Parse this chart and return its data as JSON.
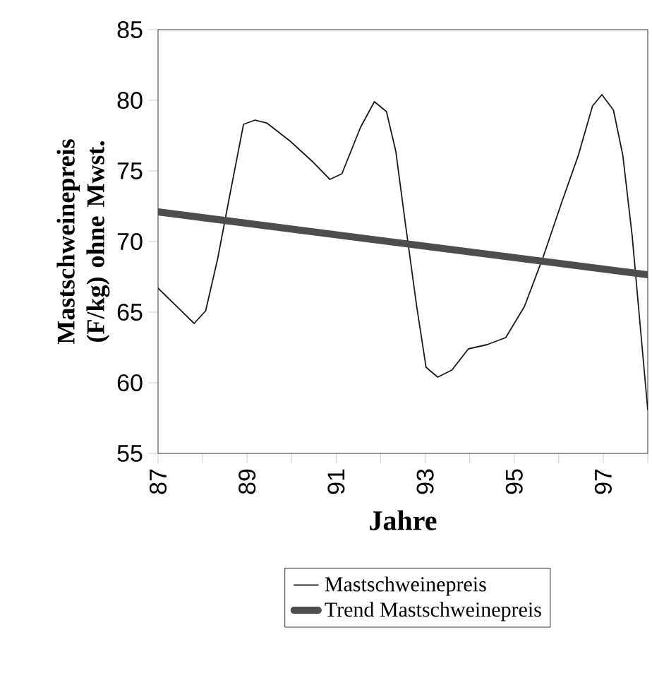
{
  "chart_data": {
    "type": "line",
    "xlabel": "Jahre",
    "ylabel": "Mastschweinepreis (F/kg) ohne Mwst.",
    "xlim": [
      87,
      98
    ],
    "xticks": [
      87,
      {
        "value": 88,
        "label": null
      },
      89,
      {
        "value": 90,
        "label": null
      },
      91,
      {
        "value": 92,
        "label": null
      },
      93,
      {
        "value": 94,
        "label": null
      },
      95,
      {
        "value": 96,
        "label": null
      },
      97,
      {
        "value": 98,
        "label": null
      }
    ],
    "ylim": [
      55,
      85
    ],
    "yticks": [
      55,
      60,
      65,
      70,
      75,
      80,
      85
    ],
    "legend": "bottom",
    "series": [
      {
        "name": "Mastschweinepreis",
        "color": "#1a1a1a",
        "x": [
          87,
          87.81,
          88.07,
          88.34,
          88.6,
          88.92,
          89.18,
          89.44,
          89.97,
          90.49,
          90.86,
          91.13,
          91.55,
          91.86,
          92.13,
          92.34,
          92.55,
          92.81,
          93.02,
          93.28,
          93.6,
          93.97,
          94.39,
          94.81,
          95.23,
          95.65,
          96.07,
          96.44,
          96.76,
          96.97,
          97.23,
          97.44,
          97.65,
          97.84,
          98
        ],
        "values": [
          66.7,
          64.2,
          65.1,
          68.8,
          73.1,
          78.3,
          78.6,
          78.4,
          77.1,
          75.6,
          74.4,
          74.8,
          78.1,
          79.9,
          79.2,
          76.4,
          71.4,
          65.4,
          61.1,
          60.4,
          60.9,
          62.4,
          62.7,
          63.2,
          65.4,
          68.9,
          72.8,
          76.1,
          79.6,
          80.4,
          79.3,
          76.1,
          70.4,
          63.7,
          58.1
        ]
      },
      {
        "name": "Trend Mastschweinepreis",
        "color": "#4d4d4d",
        "x": [
          87,
          98
        ],
        "values": [
          72.1,
          67.65
        ]
      }
    ]
  }
}
